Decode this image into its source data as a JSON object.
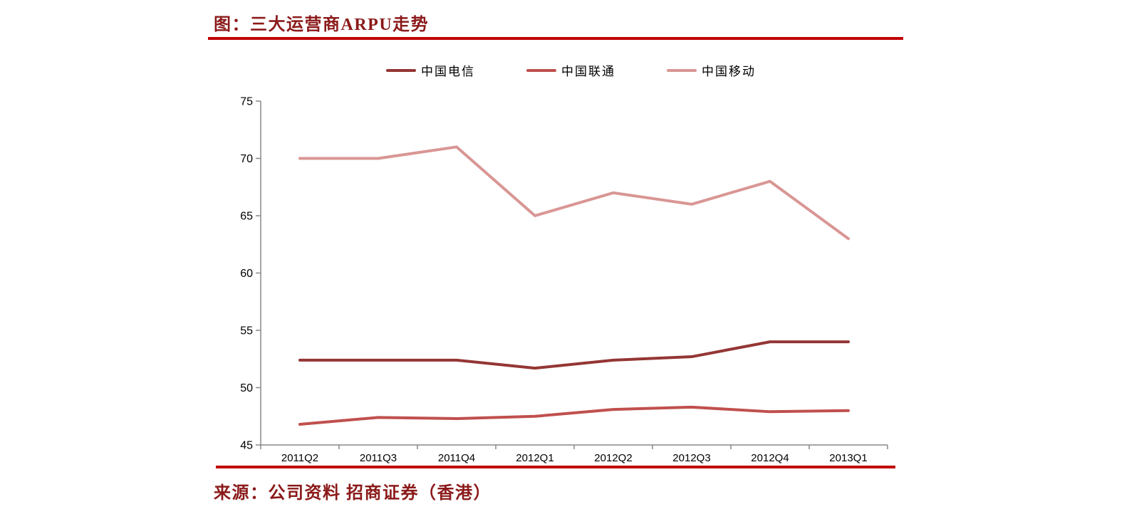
{
  "header": {
    "title": "图：三大运营商ARPU走势"
  },
  "footer": {
    "source": "来源：公司资料 招商证券（香港）"
  },
  "colors": {
    "title_text": "#8B1A1A",
    "rule": "#C00000",
    "axis_line": "#898989",
    "axis_text": "#000000",
    "background": "#FFFFFF"
  },
  "chart_data": {
    "type": "line",
    "title": "三大运营商ARPU走势",
    "xlabel": "",
    "ylabel": "",
    "categories": [
      "2011Q2",
      "2011Q3",
      "2011Q4",
      "2012Q1",
      "2012Q2",
      "2012Q3",
      "2012Q4",
      "2013Q1"
    ],
    "series": [
      {
        "id": "china-telecom",
        "name": "中国电信",
        "color": "#943634",
        "values": [
          52.4,
          52.4,
          52.4,
          51.7,
          52.4,
          52.7,
          54.0,
          54.0
        ]
      },
      {
        "id": "china-unicom",
        "name": "中国联通",
        "color": "#C0504D",
        "values": [
          46.8,
          47.4,
          47.3,
          47.5,
          48.1,
          48.3,
          47.9,
          48.0
        ]
      },
      {
        "id": "china-mobile",
        "name": "中国移动",
        "color": "#D99694",
        "values": [
          70,
          70,
          71,
          65,
          67,
          66,
          68,
          63
        ]
      }
    ],
    "ylim": [
      45,
      75
    ],
    "ytick_step": 5,
    "grid": false,
    "legend_position": "top"
  }
}
